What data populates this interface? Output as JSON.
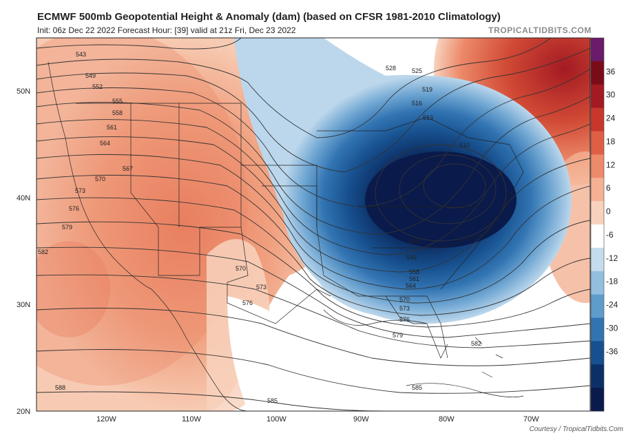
{
  "header": {
    "title": "ECMWF 500mb Geopotential Height & Anomaly (dam) (based on CFSR 1981-2010 Climatology)",
    "subtitle": "Init: 06z Dec 22 2022   Forecast Hour: [39]   valid at 21z Fri, Dec 23 2022",
    "brand": "TROPICALTIDBITS.COM",
    "courtesy": "Courtesy  /  TropicalTidbits.Com"
  },
  "axes": {
    "lat_labels": [
      "50N",
      "40N",
      "30N",
      "20N"
    ],
    "lon_labels": [
      "120W",
      "110W",
      "100W",
      "90W",
      "80W",
      "70W"
    ]
  },
  "colorbar": {
    "ticks": [
      "36",
      "30",
      "24",
      "18",
      "12",
      "6",
      "0",
      "-6",
      "-12",
      "-18",
      "-24",
      "-30",
      "-36"
    ],
    "colors": [
      "#6a1b6a",
      "#7a0c18",
      "#a31a22",
      "#c8372c",
      "#df5f45",
      "#ec8a6a",
      "#f4b193",
      "#f8d2bd",
      "#ffffff",
      "#c4dcee",
      "#93bfdf",
      "#5e9ccc",
      "#3274b2",
      "#17508e",
      "#0b3068",
      "#0a1a4a"
    ]
  },
  "height_contour_labels": [
    "543",
    "549",
    "552",
    "555",
    "558",
    "561",
    "564",
    "567",
    "570",
    "573",
    "576",
    "579",
    "582",
    "585",
    "588",
    "528",
    "525",
    "519",
    "516",
    "513",
    "510",
    "534",
    "549",
    "558",
    "561",
    "564",
    "570",
    "573",
    "576",
    "579",
    "582",
    "585",
    "570",
    "573",
    "576"
  ],
  "colors": {
    "positive_anomaly": "#f0a07f",
    "negative_anomaly": "#1a3f86",
    "contour": "#333333"
  }
}
